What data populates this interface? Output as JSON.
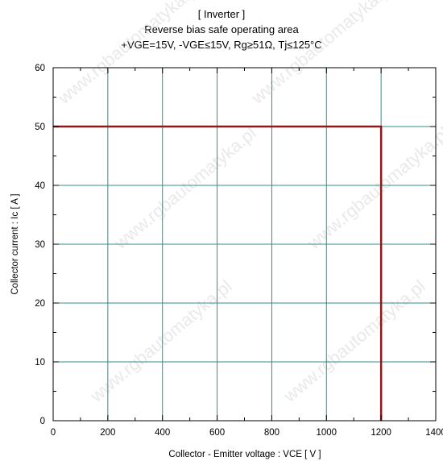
{
  "chart_data": {
    "type": "line",
    "title_lines": [
      "[ Inverter ]",
      "Reverse bias safe operating area",
      "+VGE=15V, -VGE≤15V, Rg≥51Ω, Tj≤125°C"
    ],
    "xlabel": "Collector - Emitter voltage  :  VCE  [ V ]",
    "ylabel": "Collector current  : Ic  [ A ]",
    "xlim": [
      0,
      1400
    ],
    "ylim": [
      0,
      60
    ],
    "x_ticks": [
      0,
      200,
      400,
      600,
      800,
      1000,
      1200,
      1400
    ],
    "y_ticks": [
      0,
      10,
      20,
      30,
      40,
      50,
      60
    ],
    "x_minor_step": 100,
    "y_minor_step": 5,
    "grid": true,
    "series": [
      {
        "color": "#8b1a1a",
        "points": [
          [
            0,
            50
          ],
          [
            1200,
            50
          ],
          [
            1200,
            0
          ]
        ]
      }
    ],
    "grid_color": "#2f8f8f",
    "watermark": "www.rgbautomatyka.pl"
  }
}
